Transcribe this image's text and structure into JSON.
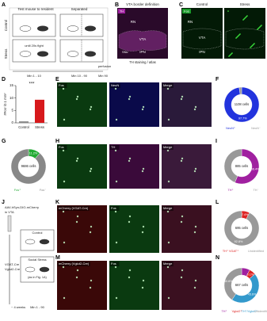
{
  "panels": [
    "A",
    "B",
    "C",
    "D",
    "E",
    "F",
    "G",
    "H",
    "I",
    "J",
    "K",
    "L",
    "M",
    "N"
  ],
  "A": {
    "headers": [
      "Test mouse to resident",
      "Separated"
    ],
    "rows": [
      "Control",
      "Stress"
    ],
    "note": "until 20s fight",
    "times": [
      "Min 1 - 10",
      "Min 10 - 90",
      "Min 90"
    ],
    "perfusion": "perfusion"
  },
  "B": {
    "title": "VTA border definition",
    "tag": "TH",
    "regions": [
      "RN",
      "VTA",
      "IPN",
      "SNc"
    ],
    "caption": "TH staining / atlas"
  },
  "C": {
    "conditions": [
      "Control",
      "Stress"
    ],
    "tag": "Fos",
    "regions": [
      "RN",
      "VTA",
      "IPN"
    ]
  },
  "D": {
    "chart_data": {
      "type": "bar",
      "ylabel": "#Fos⁺/0.1 mm²",
      "categories": [
        "Control",
        "Stress"
      ],
      "values": [
        0.6,
        9.3
      ],
      "colors": [
        "#888888",
        "#d7191c"
      ],
      "ylim": [
        0,
        15
      ],
      "yticks": [
        0,
        5,
        10,
        15
      ],
      "significance": "***"
    }
  },
  "E": {
    "tags": [
      "Fos",
      "NeuN",
      "Merge"
    ]
  },
  "F": {
    "center": "1108 cells",
    "segments": [
      {
        "name": "NeuN⁺",
        "value": 97.7,
        "label": "97.7%",
        "color": "#2233dd"
      },
      {
        "name": "NeuN⁻",
        "value": 2.3,
        "color": "#999999"
      }
    ]
  },
  "G": {
    "center": "9686 cells",
    "segments": [
      {
        "name": "Fos⁺",
        "value": 11.2,
        "label": "11.2%",
        "color": "#22aa33"
      },
      {
        "name": "Fos⁻",
        "value": 88.8,
        "color": "#888888"
      }
    ]
  },
  "H": {
    "tags": [
      "Fos",
      "TH",
      "Merge"
    ]
  },
  "I": {
    "center": "885 cells",
    "segments": [
      {
        "name": "TH⁺",
        "value": 56.4,
        "label": "56.4%",
        "color": "#a020a0"
      },
      {
        "name": "TH⁻",
        "value": 43.6,
        "color": "#999999"
      }
    ]
  },
  "J": {
    "virus": "AAV-hSyn-DIO-mCherry",
    "target": "in VTA",
    "control": "Control",
    "stress": "Social Stress",
    "stress_note": "(as in Fig. 1A)",
    "lines": [
      "VGAT-Cre",
      "Vglut2-Cre"
    ],
    "wait": "~ 4 weeks",
    "time": "Min 1 - 90"
  },
  "K": {
    "tags": [
      "mCherry (VGAT-Cre)",
      "Fos",
      "Merge"
    ]
  },
  "L": {
    "center": "695 cells",
    "segments": [
      {
        "name": "TH⁺ VGAT⁺",
        "value": 7.4,
        "label": "7.4%",
        "color": "#dd2222"
      },
      {
        "name": "Unidentified",
        "value": 92.8,
        "label": "92.8%",
        "color": "#999999"
      }
    ]
  },
  "M": {
    "tags": [
      "mCherry (Vglut2-Cre)",
      "Fos",
      "Merge"
    ]
  },
  "N": {
    "center": "667 cells",
    "segments": [
      {
        "name": "TH⁺",
        "value": 7.7,
        "color": "#a020a0"
      },
      {
        "name": "Vglut2⁺",
        "value": 6.1,
        "label": "6.1%",
        "color": "#dd2222"
      },
      {
        "name": "TH⁺/Vglut2⁺",
        "value": 45.6,
        "label": "45.6%",
        "color": "#3399cc"
      },
      {
        "name": "Unidentified",
        "value": 40.6,
        "label": "40.6%",
        "color": "#999999"
      }
    ]
  }
}
